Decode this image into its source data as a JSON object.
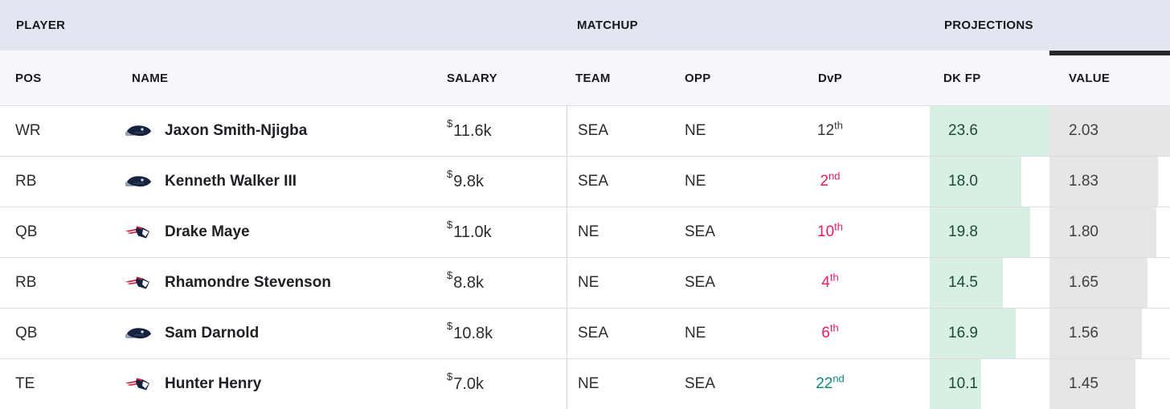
{
  "header": {
    "groups": [
      {
        "label": "PLAYER"
      },
      {
        "label": "MATCHUP"
      },
      {
        "label": "PROJECTIONS"
      }
    ],
    "columns": [
      {
        "label": "POS"
      },
      {
        "label": "NAME"
      },
      {
        "label": "SALARY"
      },
      {
        "label": "TEAM"
      },
      {
        "label": "OPP"
      },
      {
        "label": "DvP"
      },
      {
        "label": "DK FP"
      },
      {
        "label": "VALUE"
      }
    ],
    "sorted_column": "VALUE"
  },
  "table": {
    "salary_prefix": "$",
    "rows": [
      {
        "pos": "WR",
        "name": "Jaxon Smith-Njigba",
        "logo": "seahawks",
        "salary": "11.6k",
        "team": "SEA",
        "opp": "NE",
        "dvp_rank": "12",
        "dvp_suffix": "th",
        "dvp_tone": "neutral",
        "dk_fp": "23.6",
        "value": "2.03"
      },
      {
        "pos": "RB",
        "name": "Kenneth Walker III",
        "logo": "seahawks",
        "salary": "9.8k",
        "team": "SEA",
        "opp": "NE",
        "dvp_rank": "2",
        "dvp_suffix": "nd",
        "dvp_tone": "bad",
        "dk_fp": "18.0",
        "value": "1.83"
      },
      {
        "pos": "QB",
        "name": "Drake Maye",
        "logo": "patriots",
        "salary": "11.0k",
        "team": "NE",
        "opp": "SEA",
        "dvp_rank": "10",
        "dvp_suffix": "th",
        "dvp_tone": "bad",
        "dk_fp": "19.8",
        "value": "1.80"
      },
      {
        "pos": "RB",
        "name": "Rhamondre Stevenson",
        "logo": "patriots",
        "salary": "8.8k",
        "team": "NE",
        "opp": "SEA",
        "dvp_rank": "4",
        "dvp_suffix": "th",
        "dvp_tone": "bad",
        "dk_fp": "14.5",
        "value": "1.65"
      },
      {
        "pos": "QB",
        "name": "Sam Darnold",
        "logo": "seahawks",
        "salary": "10.8k",
        "team": "SEA",
        "opp": "NE",
        "dvp_rank": "6",
        "dvp_suffix": "th",
        "dvp_tone": "bad",
        "dk_fp": "16.9",
        "value": "1.56"
      },
      {
        "pos": "TE",
        "name": "Hunter Henry",
        "logo": "patriots",
        "salary": "7.0k",
        "team": "NE",
        "opp": "SEA",
        "dvp_rank": "22",
        "dvp_suffix": "nd",
        "dvp_tone": "good",
        "dk_fp": "10.1",
        "value": "1.45"
      }
    ]
  },
  "colors": {
    "group_band": "#e3e5f0",
    "subheader_band": "#f7f8fb",
    "dkfp_bar": "#d8efe3",
    "value_bar": "#e6e6e6",
    "dkfp_text": "#1d4a39",
    "dvp_bad": "#ed1b5e",
    "dvp_good": "#0d8a7e",
    "dvp_neutral": "#33353a",
    "sort_indicator": "#26282c"
  }
}
